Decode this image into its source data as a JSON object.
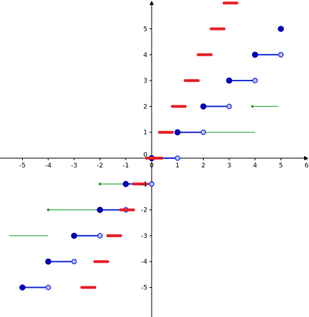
{
  "chart_data": {
    "type": "scatter",
    "title": "",
    "xlabel": "",
    "ylabel": "",
    "xlim": [
      -5.6,
      5.9
    ],
    "ylim": [
      -6.2,
      6.0
    ],
    "grid": false,
    "x_ticks": [
      -5,
      -4,
      -3,
      -2,
      -1,
      0,
      1,
      2,
      3,
      4,
      5,
      6
    ],
    "y_ticks": [
      -5,
      -4,
      -3,
      -2,
      -1,
      1,
      2,
      3,
      4,
      5
    ],
    "colors": {
      "blue": "#1a2fd6",
      "dark_blue": "#0000b0",
      "red": "#e8202a",
      "green": "#18a028",
      "axis": "#000000"
    },
    "series": [
      {
        "style": "blue-steps",
        "segments": [
          {
            "x1": -5,
            "x2": -4,
            "y": -5
          },
          {
            "x1": -4,
            "x2": -3,
            "y": -4
          },
          {
            "x1": -3,
            "x2": -2,
            "y": -3
          },
          {
            "x1": -2,
            "x2": -1,
            "y": -2
          },
          {
            "x1": -1,
            "x2": 0,
            "y": -1
          },
          {
            "x1": 0,
            "x2": 1,
            "y": 0
          },
          {
            "x1": 1,
            "x2": 2,
            "y": 1
          },
          {
            "x1": 2,
            "x2": 3,
            "y": 2
          },
          {
            "x1": 3,
            "x2": 4,
            "y": 3
          },
          {
            "x1": 4,
            "x2": 5,
            "y": 4
          },
          {
            "x1": 5,
            "x2": 5,
            "y": 5
          }
        ]
      },
      {
        "style": "red-steps",
        "segments": [
          {
            "x1": -2.7,
            "x2": -2.2,
            "y": -5
          },
          {
            "x1": -2.2,
            "x2": -1.7,
            "y": -4
          },
          {
            "x1": -1.7,
            "x2": -1.2,
            "y": -3
          },
          {
            "x1": -1.2,
            "x2": -0.7,
            "y": -2
          },
          {
            "x1": -0.7,
            "x2": -0.2,
            "y": -1
          },
          {
            "x1": -0.2,
            "x2": 0.4,
            "y": 0
          },
          {
            "x1": 0.3,
            "x2": 0.8,
            "y": 1
          },
          {
            "x1": 0.8,
            "x2": 1.3,
            "y": 2
          },
          {
            "x1": 1.3,
            "x2": 1.8,
            "y": 3
          },
          {
            "x1": 1.8,
            "x2": 2.3,
            "y": 4
          },
          {
            "x1": 2.3,
            "x2": 2.8,
            "y": 5
          },
          {
            "x1": 2.8,
            "x2": 3.3,
            "y": 6
          }
        ]
      },
      {
        "style": "green-lines",
        "segments": [
          {
            "x1": -5.5,
            "x2": -4,
            "y": -3,
            "dot_at": null
          },
          {
            "x1": -4,
            "x2": -1,
            "y": -2,
            "dot_at": -4
          },
          {
            "x1": -2,
            "x2": 0,
            "y": -1,
            "dot_at": -2
          },
          {
            "x1": 0,
            "x2": 2,
            "y": 0,
            "dot_at": null
          },
          {
            "x1": 1,
            "x2": 4,
            "y": 1,
            "dot_at": null
          },
          {
            "x1": 3.9,
            "x2": 4.9,
            "y": 2,
            "dot_at": 3.9
          }
        ]
      }
    ]
  }
}
